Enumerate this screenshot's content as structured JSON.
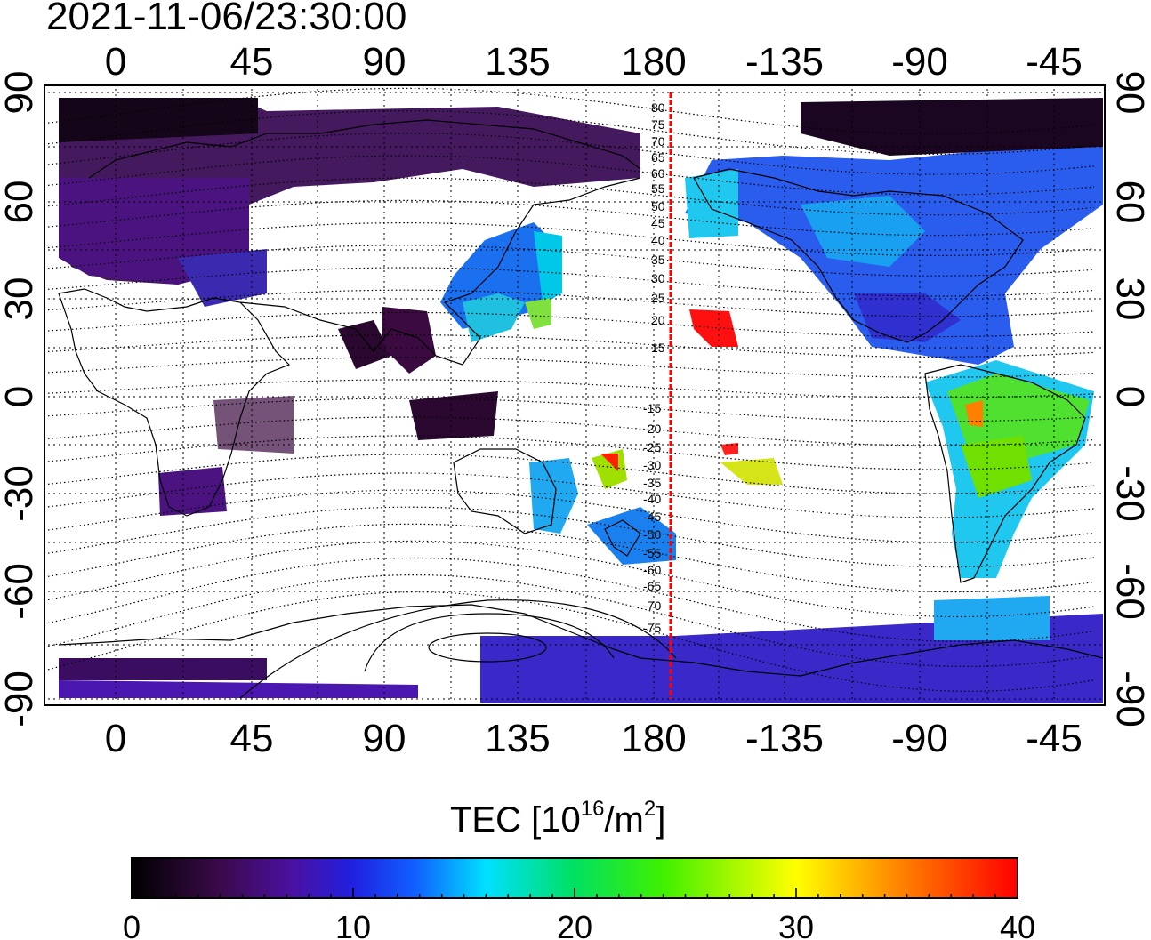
{
  "map": {
    "timestamp": "2021-11-06/23:30:00",
    "lon_ticks": [
      "0",
      "45",
      "90",
      "135",
      "180",
      "-135",
      "-90",
      "-45"
    ],
    "lat_ticks_left": [
      "90",
      "60",
      "30",
      "0",
      "-30",
      "-60",
      "-90"
    ],
    "lat_ticks_right": [
      "90",
      "60",
      "30",
      "0",
      "-30",
      "-60",
      "-90"
    ],
    "contour_labels_north": [
      "80",
      "75",
      "70",
      "65",
      "60",
      "55",
      "50",
      "45",
      "40",
      "35",
      "30",
      "25",
      "20",
      "15"
    ],
    "contour_labels_south": [
      "-15",
      "-20",
      "-25",
      "-30",
      "-35",
      "-40",
      "-45",
      "-50",
      "-55",
      "-60",
      "-65",
      "-70",
      "-75"
    ],
    "terminator_color": "#ff0000"
  },
  "colorbar": {
    "title_main": "TEC  [10",
    "title_exp": "16",
    "title_unit": "/m",
    "title_unit_exp": "2",
    "title_end": "]",
    "tick_labels": [
      "0",
      "10",
      "20",
      "30",
      "40"
    ],
    "min": 0,
    "max": 40,
    "colors": [
      "#000000",
      "#3a0a4a",
      "#4a10a0",
      "#2020e0",
      "#1060ff",
      "#00e0ff",
      "#00e060",
      "#40f000",
      "#ffff00",
      "#ff8000",
      "#ff0000"
    ]
  }
}
